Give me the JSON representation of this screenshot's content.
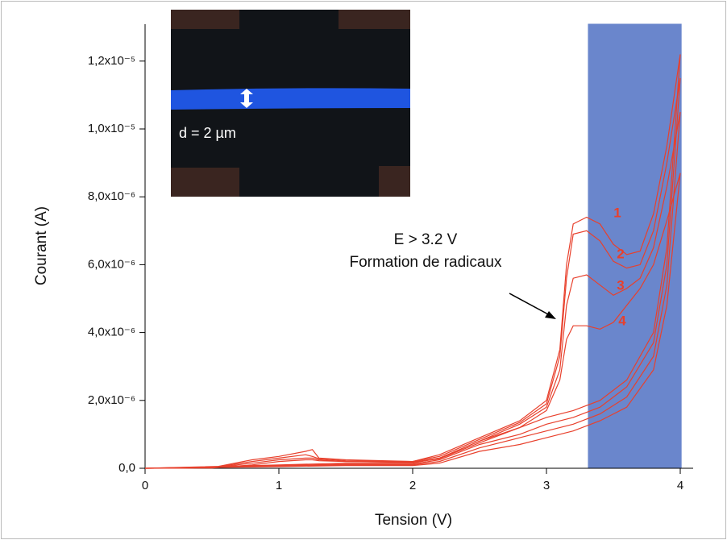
{
  "chart_data": {
    "type": "line",
    "x_label": "Tension (V)",
    "y_label": "Courant (A)",
    "xlim": [
      0,
      4.1
    ],
    "ylim": [
      0,
      1.31e-05
    ],
    "xticks": [
      0,
      1,
      2,
      3,
      4
    ],
    "yticks": [
      {
        "value": 0,
        "label": "0,0"
      },
      {
        "value": 2e-06,
        "label": "2,0x10⁻⁶"
      },
      {
        "value": 4e-06,
        "label": "4,0x10⁻⁶"
      },
      {
        "value": 6e-06,
        "label": "6,0x10⁻⁶"
      },
      {
        "value": 8e-06,
        "label": "8,0x10⁻⁶"
      },
      {
        "value": 1e-05,
        "label": "1,0x10⁻⁵"
      },
      {
        "value": 1.2e-05,
        "label": "1,2x10⁻⁵"
      }
    ],
    "shaded_region": {
      "xmin": 3.31,
      "xmax": 4.01,
      "color": "#6a86cc"
    },
    "annotations": [
      "E > 3.2 V",
      "Formation de radicaux"
    ],
    "inset_label": "d = 2 µm",
    "series": [
      {
        "name": "1",
        "color": "#e8402c",
        "x": [
          0,
          0.5,
          0.8,
          1.0,
          1.2,
          1.25,
          1.3,
          1.5,
          2.0,
          2.2,
          2.5,
          2.8,
          3.0,
          3.1,
          3.15,
          3.2,
          3.3,
          3.4,
          3.5,
          3.6,
          3.7,
          3.8,
          3.9,
          4.0,
          3.9,
          3.8,
          3.6,
          3.4,
          3.2,
          3.0,
          2.8,
          2.5,
          2.2,
          2.0,
          1.5,
          1.0,
          0
        ],
        "values": [
          0,
          2e-08,
          2.5e-07,
          3.5e-07,
          5e-07,
          5.5e-07,
          3e-07,
          2.5e-07,
          2e-07,
          4e-07,
          9e-07,
          1.4e-06,
          2e-06,
          3.5e-06,
          6e-06,
          7.2e-06,
          7.4e-06,
          7.2e-06,
          6.6e-06,
          6.3e-06,
          6.4e-06,
          7.5e-06,
          9.5e-06,
          1.22e-05,
          6.5e-06,
          4e-06,
          2.6e-06,
          2e-06,
          1.7e-06,
          1.5e-06,
          1.2e-06,
          8e-07,
          3e-07,
          1.5e-07,
          1.5e-07,
          1e-07,
          0
        ]
      },
      {
        "name": "2",
        "color": "#e8402c",
        "x": [
          0,
          0.5,
          0.8,
          1.0,
          1.2,
          1.25,
          1.3,
          1.5,
          2.0,
          2.2,
          2.5,
          2.8,
          3.0,
          3.1,
          3.15,
          3.2,
          3.3,
          3.4,
          3.5,
          3.6,
          3.7,
          3.8,
          3.9,
          4.0,
          3.9,
          3.8,
          3.6,
          3.4,
          3.2,
          3.0,
          2.8,
          2.5,
          2.2,
          2.0,
          1.5,
          1.0,
          0
        ],
        "values": [
          0,
          2e-08,
          2e-07,
          3e-07,
          4e-07,
          3.5e-07,
          2.8e-07,
          2.2e-07,
          2e-07,
          3.5e-07,
          8.5e-07,
          1.35e-06,
          1.9e-06,
          3.3e-06,
          5.6e-06,
          6.9e-06,
          7e-06,
          6.7e-06,
          6.1e-06,
          5.9e-06,
          6e-06,
          7e-06,
          9e-06,
          1.15e-05,
          6e-06,
          3.7e-06,
          2.4e-06,
          1.8e-06,
          1.5e-06,
          1.3e-06,
          1e-06,
          7e-07,
          2.5e-07,
          1.2e-07,
          1.2e-07,
          8e-08,
          0
        ]
      },
      {
        "name": "3",
        "color": "#e8402c",
        "x": [
          0,
          0.5,
          0.8,
          1.0,
          1.2,
          1.25,
          1.3,
          1.5,
          2.0,
          2.2,
          2.5,
          2.8,
          3.0,
          3.1,
          3.15,
          3.2,
          3.3,
          3.4,
          3.5,
          3.6,
          3.7,
          3.8,
          3.9,
          4.0,
          3.9,
          3.8,
          3.6,
          3.4,
          3.2,
          3.0,
          2.8,
          2.5,
          2.2,
          2.0,
          1.5,
          1.0,
          0
        ],
        "values": [
          0,
          2e-08,
          1.5e-07,
          2.5e-07,
          3e-07,
          3e-07,
          2.5e-07,
          2e-07,
          1.8e-07,
          3e-07,
          8e-07,
          1.3e-06,
          1.8e-06,
          2.9e-06,
          4.8e-06,
          5.6e-06,
          5.7e-06,
          5.4e-06,
          5.1e-06,
          5.3e-06,
          5.6e-06,
          6.5e-06,
          8.3e-06,
          1.05e-05,
          5.4e-06,
          3.3e-06,
          2.1e-06,
          1.6e-06,
          1.3e-06,
          1.1e-06,
          9e-07,
          6e-07,
          2e-07,
          1e-07,
          1e-07,
          6e-08,
          0
        ]
      },
      {
        "name": "4",
        "color": "#e8402c",
        "x": [
          0,
          0.5,
          0.8,
          1.0,
          1.2,
          1.25,
          1.3,
          1.5,
          2.0,
          2.2,
          2.5,
          2.8,
          3.0,
          3.1,
          3.15,
          3.2,
          3.3,
          3.4,
          3.5,
          3.6,
          3.7,
          3.8,
          3.9,
          4.0,
          3.9,
          3.8,
          3.6,
          3.4,
          3.2,
          3.0,
          2.8,
          2.5,
          2.2,
          2.0,
          1.5,
          1.0,
          0
        ],
        "values": [
          0,
          1e-08,
          1e-07,
          2e-07,
          2.5e-07,
          2.5e-07,
          2.2e-07,
          2e-07,
          1.7e-07,
          2.8e-07,
          7.5e-07,
          1.2e-06,
          1.7e-06,
          2.6e-06,
          3.8e-06,
          4.2e-06,
          4.2e-06,
          4.1e-06,
          4.3e-06,
          4.8e-06,
          5.3e-06,
          6e-06,
          7.3e-06,
          8.7e-06,
          4.8e-06,
          2.9e-06,
          1.8e-06,
          1.4e-06,
          1.1e-06,
          9e-07,
          7e-07,
          5e-07,
          1.5e-07,
          8e-08,
          8e-08,
          5e-08,
          0
        ]
      }
    ]
  }
}
